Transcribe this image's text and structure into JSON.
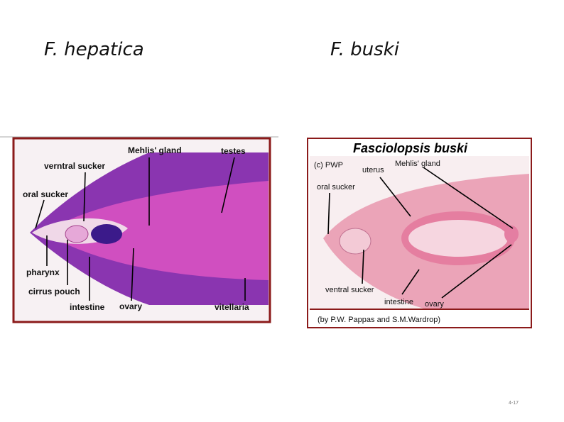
{
  "slide": {
    "titles": [
      "F. hepatica",
      "F. buski"
    ],
    "left_figure": {
      "labels": [
        "verntral sucker",
        "Mehlis' gland",
        "testes",
        "oral sucker",
        "pharynx",
        "cirrus pouch",
        "intestine",
        "ovary",
        "vitellaria"
      ]
    },
    "right_figure": {
      "title": "Fasciolopsis buski",
      "labels": [
        "(c) PWP",
        "uterus",
        "Mehlis' gland",
        "oral sucker",
        "ventral sucker",
        "intestine",
        "ovary"
      ],
      "credit": "(by P.W. Pappas and S.M.Wardrop)"
    },
    "page_number": "4-17"
  }
}
